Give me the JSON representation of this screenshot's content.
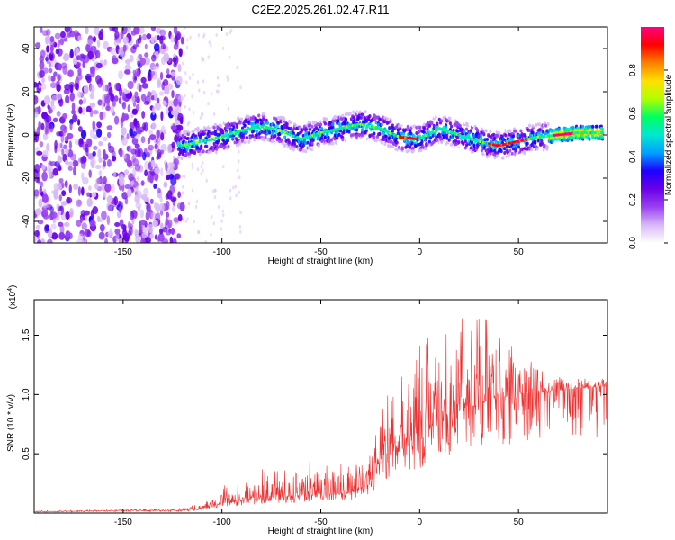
{
  "title": "C2E2.2025.261.02.47.R11",
  "chart_data": [
    {
      "type": "heatmap",
      "name": "spectrogram",
      "xlabel": "Height of straight line (km)",
      "ylabel": "Frequency (Hz)",
      "xlim": [
        -195,
        95
      ],
      "ylim": [
        -50,
        50
      ],
      "x_ticks": [
        -150,
        -100,
        -50,
        0,
        50
      ],
      "y_ticks": [
        -40,
        -20,
        0,
        20,
        40
      ],
      "colorbar": {
        "label": "Normalized spectral amplitude",
        "range": [
          0,
          1
        ],
        "ticks": [
          0.0,
          0.2,
          0.4,
          0.6,
          0.8
        ],
        "tick_labels": [
          "0.0",
          "0.2",
          "0.4",
          "0.6",
          "0.8"
        ],
        "colors": [
          "#ffffff",
          "#d8b8f8",
          "#9a40f0",
          "#6a00e8",
          "#1e00ff",
          "#00a0ff",
          "#00e8d0",
          "#00ff60",
          "#b0ff00",
          "#ffe000",
          "#ff8000",
          "#ff0000",
          "#ff0080"
        ]
      },
      "ridge": {
        "x": [
          -120,
          -110,
          -100,
          -90,
          -80,
          -70,
          -60,
          -50,
          -40,
          -30,
          -20,
          -10,
          0,
          10,
          20,
          30,
          40,
          50,
          60,
          70,
          80,
          90,
          95
        ],
        "y": [
          -5,
          -3,
          -1,
          2,
          4,
          2,
          -2,
          1,
          3,
          5,
          3,
          -1,
          -2,
          3,
          0,
          -3,
          -5,
          -3,
          -1,
          0,
          1,
          1,
          1
        ]
      }
    },
    {
      "type": "line",
      "name": "snr",
      "xlabel": "Height of straight line (km)",
      "ylabel": "SNR (10 * v/v)",
      "multiplier_label": "(x10",
      "multiplier_exp": "4",
      "multiplier_close": ")",
      "xlim": [
        -195,
        95
      ],
      "ylim": [
        0,
        1.8
      ],
      "x_ticks": [
        -150,
        -100,
        -50,
        0,
        50
      ],
      "y_ticks": [
        0.5,
        1.0,
        1.5
      ],
      "y_tick_labels": [
        "0.5",
        "1.0",
        "1.5"
      ],
      "color": "#ee3030",
      "envelope": {
        "x": [
          -195,
          -150,
          -120,
          -110,
          -100,
          -90,
          -80,
          -70,
          -60,
          -50,
          -40,
          -30,
          -25,
          -20,
          -15,
          -10,
          -5,
          0,
          5,
          10,
          15,
          20,
          25,
          30,
          35,
          40,
          45,
          50,
          55,
          60,
          70,
          80,
          90,
          95
        ],
        "base": [
          0.01,
          0.02,
          0.02,
          0.04,
          0.08,
          0.1,
          0.12,
          0.13,
          0.15,
          0.15,
          0.16,
          0.2,
          0.25,
          0.45,
          0.5,
          0.55,
          0.55,
          0.6,
          0.7,
          0.75,
          0.8,
          0.85,
          0.9,
          0.9,
          0.95,
          0.95,
          0.95,
          1.0,
          1.0,
          1.02,
          1.03,
          1.05,
          1.06,
          1.07
        ],
        "amp": [
          0.01,
          0.01,
          0.02,
          0.05,
          0.15,
          0.2,
          0.25,
          0.25,
          0.3,
          0.3,
          0.3,
          0.35,
          0.35,
          0.55,
          0.5,
          0.6,
          0.6,
          0.85,
          0.8,
          0.8,
          0.7,
          0.8,
          0.8,
          0.75,
          0.75,
          0.7,
          0.55,
          0.45,
          0.35,
          0.2,
          0.12,
          0.1,
          0.08,
          0.08
        ]
      }
    }
  ]
}
